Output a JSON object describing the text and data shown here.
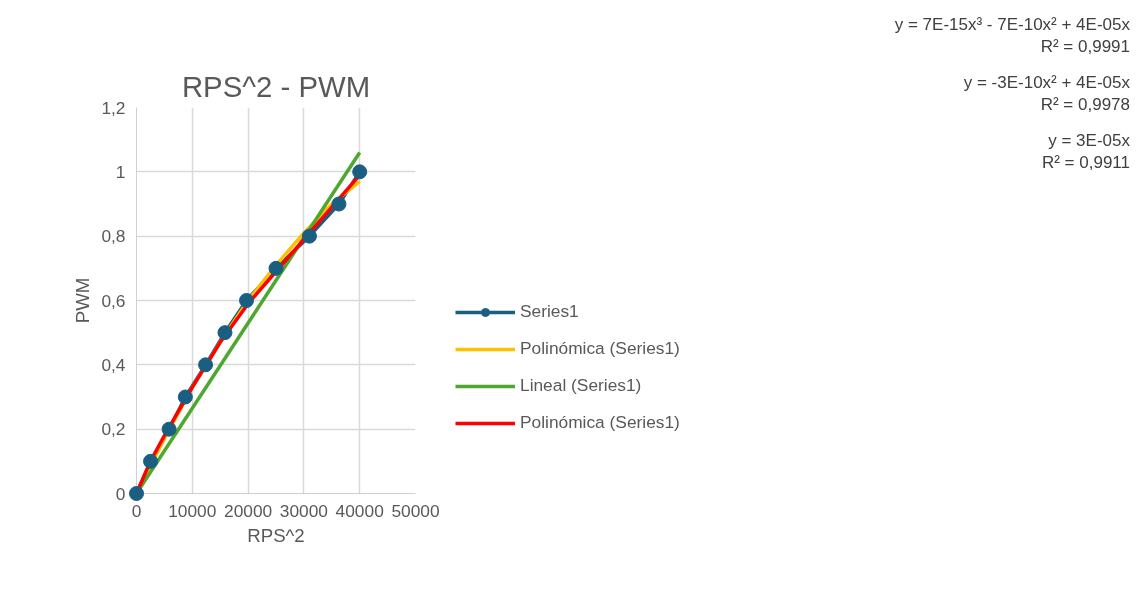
{
  "chart_data": {
    "type": "line",
    "title": "RPS^2 - PWM",
    "xlabel": "RPS^2",
    "ylabel": "PWM",
    "x": [
      0,
      2520,
      5840,
      8750,
      12380,
      15850,
      19720,
      25000,
      30990,
      36280,
      40000
    ],
    "series": [
      {
        "name": "Series1",
        "color": "#1a5e82",
        "marker": "circle",
        "values": [
          0,
          0.1,
          0.2,
          0.3,
          0.4,
          0.5,
          0.6,
          0.7,
          0.8,
          0.9,
          1
        ]
      },
      {
        "name": "Polinómica (Series1)",
        "color": "#ffc000",
        "marker": "none",
        "x": [
          0,
          5000,
          10000,
          15000,
          20000,
          25000,
          30000,
          35000,
          40000
        ],
        "values": [
          0,
          0.17,
          0.33,
          0.47,
          0.6,
          0.71,
          0.81,
          0.9,
          0.97
        ]
      },
      {
        "name": "Lineal (Series1)",
        "color": "#4ea72e",
        "marker": "none",
        "x": [
          0,
          40000
        ],
        "values": [
          0,
          1.06
        ]
      },
      {
        "name": "Polinómica (Series1)",
        "color": "#ff0000",
        "marker": "none",
        "x": [
          0,
          2500,
          5000,
          10000,
          15000,
          20000,
          25000,
          30000,
          35000,
          40000
        ],
        "values": [
          0,
          0.1,
          0.18,
          0.33,
          0.47,
          0.59,
          0.69,
          0.79,
          0.89,
          0.99
        ]
      }
    ],
    "xlim": [
      0,
      50000
    ],
    "xticks": [
      0,
      10000,
      20000,
      30000,
      40000,
      50000
    ],
    "ylim": [
      0,
      1.2
    ],
    "yticks": [
      0,
      {
        "value": 0.2,
        "label": "0,2"
      },
      {
        "value": 0.4,
        "label": "0,4"
      },
      {
        "value": 0.6,
        "label": "0,6"
      },
      {
        "value": 0.8,
        "label": "0,8"
      },
      1,
      {
        "value": 1.2,
        "label": "1,2"
      }
    ],
    "grid": true,
    "legend": "right",
    "annotations": [
      "y = 7E-15x³ - 7E-10x² + 4E-05x",
      "R² = 0,9991",
      "y = -3E-10x² + 4E-05x",
      "R² = 0,9978",
      "y = 3E-05x",
      "R² = 0,9911"
    ]
  }
}
